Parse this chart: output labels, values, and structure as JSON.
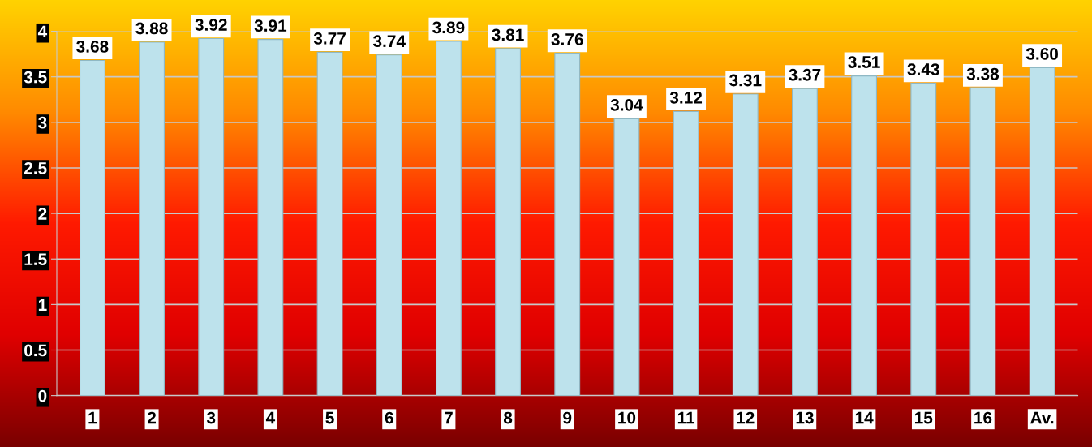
{
  "chart_data": {
    "type": "bar",
    "categories": [
      "1",
      "2",
      "3",
      "4",
      "5",
      "6",
      "7",
      "8",
      "9",
      "10",
      "11",
      "12",
      "13",
      "14",
      "15",
      "16",
      "Av."
    ],
    "values": [
      3.68,
      3.88,
      3.92,
      3.91,
      3.77,
      3.74,
      3.89,
      3.81,
      3.76,
      3.04,
      3.12,
      3.31,
      3.37,
      3.51,
      3.43,
      3.38,
      3.6
    ],
    "value_labels": [
      "3.68",
      "3.88",
      "3.92",
      "3.91",
      "3.77",
      "3.74",
      "3.89",
      "3.81",
      "3.76",
      "3.04",
      "3.12",
      "3.31",
      "3.37",
      "3.51",
      "3.43",
      "3.38",
      "3.60"
    ],
    "color": "#bde2ec",
    "ylim": [
      0,
      4
    ],
    "yticks": [
      0,
      0.5,
      1,
      1.5,
      2,
      2.5,
      3,
      3.5,
      4
    ],
    "grid": "y"
  }
}
